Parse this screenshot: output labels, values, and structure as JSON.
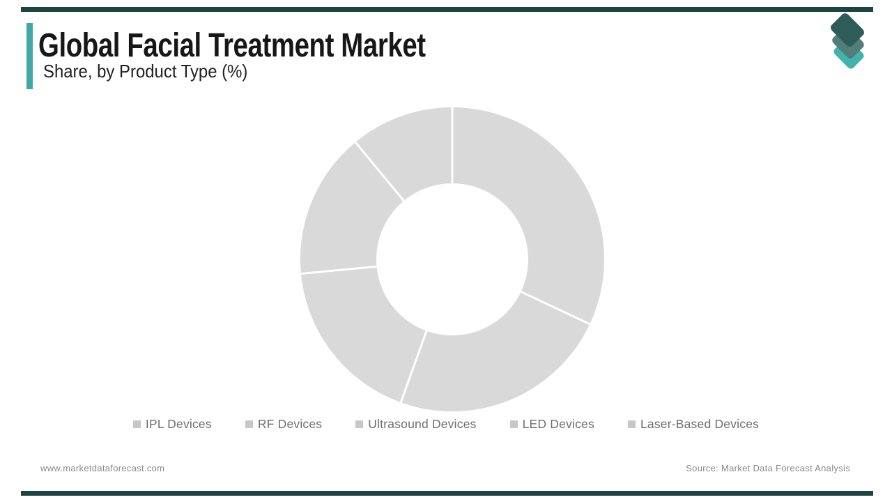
{
  "page": {
    "background": "#FFFFFF",
    "top_bar_color": "#1C4442",
    "bottom_bar_color": "#1C4442"
  },
  "header": {
    "title": "Global Facial Treatment Market",
    "subtitle": "Share, by Product Type (%)",
    "accent_color": "#3FA8A4"
  },
  "logo": {
    "name": "market-data-forecast-layers-logo",
    "layer_colors": {
      "top": "#2E5D59",
      "middle": "#527E7A",
      "bottom": "#3FB3AC"
    }
  },
  "chart_data": {
    "type": "pie",
    "subtype": "donut",
    "title": "Global Facial Treatment Market Share, by Product Type (%)",
    "categories": [
      "IPL Devices",
      "RF Devices",
      "Ultrasound Devices",
      "LED Devices",
      "Laser-Based Devices"
    ],
    "values": [
      32,
      23.5,
      18,
      15.5,
      11
    ],
    "values_note": "Approximate % shares estimated from segment arc angles; segments carry no numeric labels and are all rendered in placeholder gray.",
    "segment_color": "#D9D9D9",
    "separator_color": "#FFFFFF",
    "start_angle_deg": 0,
    "clockwise": true,
    "inner_radius_ratio": 0.5,
    "legend_position": "bottom"
  },
  "legend": {
    "swatch_color": "#C7C7C7",
    "text_color": "#6E6E6E",
    "items": [
      "IPL Devices",
      "RF Devices",
      "Ultrasound Devices",
      "LED Devices",
      "Laser-Based Devices"
    ]
  },
  "footer": {
    "website": "www.marketdataforecast.com",
    "source": "Source: Market Data Forecast Analysis"
  }
}
